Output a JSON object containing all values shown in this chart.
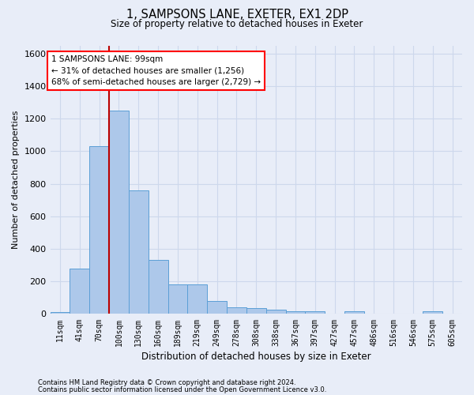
{
  "title1": "1, SAMPSONS LANE, EXETER, EX1 2DP",
  "title2": "Size of property relative to detached houses in Exeter",
  "xlabel": "Distribution of detached houses by size in Exeter",
  "ylabel": "Number of detached properties",
  "footer1": "Contains HM Land Registry data © Crown copyright and database right 2024.",
  "footer2": "Contains public sector information licensed under the Open Government Licence v3.0.",
  "bin_labels": [
    "11sqm",
    "41sqm",
    "70sqm",
    "100sqm",
    "130sqm",
    "160sqm",
    "189sqm",
    "219sqm",
    "249sqm",
    "278sqm",
    "308sqm",
    "338sqm",
    "367sqm",
    "397sqm",
    "427sqm",
    "457sqm",
    "486sqm",
    "516sqm",
    "546sqm",
    "575sqm",
    "605sqm"
  ],
  "bar_values": [
    10,
    280,
    1030,
    1250,
    760,
    330,
    180,
    180,
    80,
    40,
    35,
    25,
    15,
    15,
    0,
    15,
    0,
    0,
    0,
    15,
    0
  ],
  "bar_color": "#adc8ea",
  "bar_edge_color": "#5b9fd6",
  "annotation_text": "1 SAMPSONS LANE: 99sqm\n← 31% of detached houses are smaller (1,256)\n68% of semi-detached houses are larger (2,729) →",
  "annotation_box_color": "white",
  "annotation_box_edge_color": "red",
  "vline_color": "#bb0000",
  "vline_index": 2.5,
  "ylim": [
    0,
    1650
  ],
  "yticks": [
    0,
    200,
    400,
    600,
    800,
    1000,
    1200,
    1400,
    1600
  ],
  "grid_color": "#cdd8ec",
  "background_color": "#e8edf8"
}
